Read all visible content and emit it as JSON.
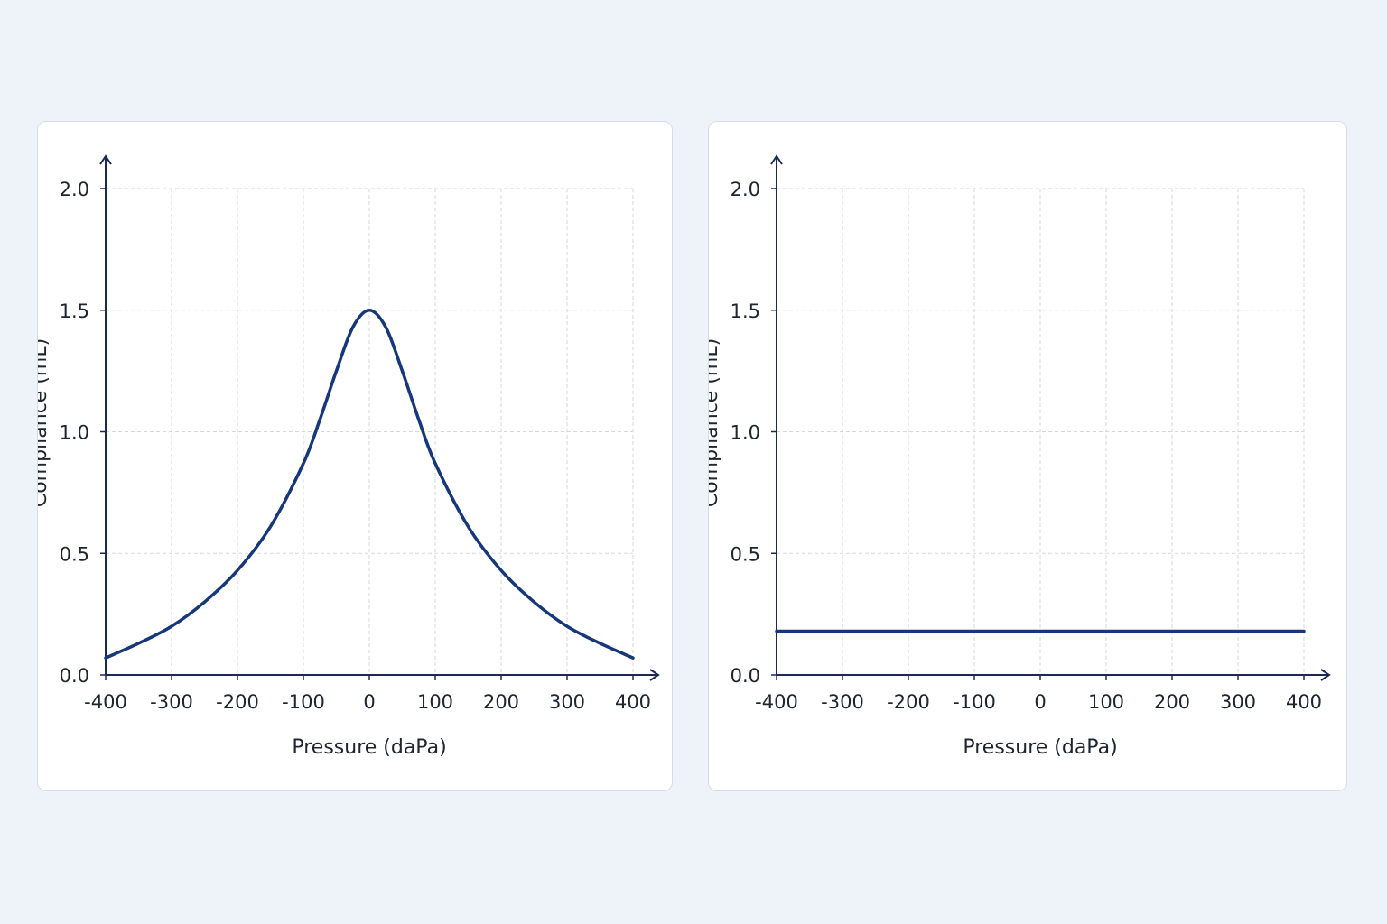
{
  "theme": {
    "line_color": "#16387a",
    "axis_color": "#1a2a55",
    "grid_color": "#d3d7de"
  },
  "chart_data": [
    {
      "type": "line",
      "xlabel": "Pressure (daPa)",
      "ylabel": "Compliance (mL)",
      "xlim": [
        -400,
        400
      ],
      "ylim": [
        0,
        2.0
      ],
      "x_ticks": [
        -400,
        -300,
        -200,
        -100,
        0,
        100,
        200,
        300,
        400
      ],
      "x_tick_labels": [
        "-400",
        "-300",
        "-200",
        "-100",
        "0",
        "100",
        "200",
        "300",
        "400"
      ],
      "y_ticks": [
        0,
        0.5,
        1.0,
        1.5,
        2.0
      ],
      "y_tick_labels": [
        "0.0",
        "0.5",
        "1.0",
        "1.5",
        "2.0"
      ],
      "grid": true,
      "legend": "none",
      "series": [
        {
          "x": [
            -400,
            -350,
            -300,
            -250,
            -200,
            -150,
            -100,
            -75,
            -50,
            -25,
            0,
            25,
            50,
            75,
            100,
            150,
            200,
            250,
            300,
            350,
            400
          ],
          "y": [
            0.07,
            0.13,
            0.2,
            0.3,
            0.43,
            0.61,
            0.87,
            1.05,
            1.25,
            1.43,
            1.5,
            1.43,
            1.25,
            1.05,
            0.87,
            0.61,
            0.43,
            0.3,
            0.2,
            0.13,
            0.07
          ]
        }
      ]
    },
    {
      "type": "line",
      "xlabel": "Pressure (daPa)",
      "ylabel": "Compliance (mL)",
      "xlim": [
        -400,
        400
      ],
      "ylim": [
        0,
        2.0
      ],
      "x_ticks": [
        -400,
        -300,
        -200,
        -100,
        0,
        100,
        200,
        300,
        400
      ],
      "x_tick_labels": [
        "-400",
        "-300",
        "-200",
        "-100",
        "0",
        "100",
        "200",
        "300",
        "400"
      ],
      "y_ticks": [
        0,
        0.5,
        1.0,
        1.5,
        2.0
      ],
      "y_tick_labels": [
        "0.0",
        "0.5",
        "1.0",
        "1.5",
        "2.0"
      ],
      "grid": true,
      "legend": "none",
      "series": [
        {
          "x": [
            -400,
            400
          ],
          "y": [
            0.18,
            0.18
          ]
        }
      ]
    }
  ]
}
